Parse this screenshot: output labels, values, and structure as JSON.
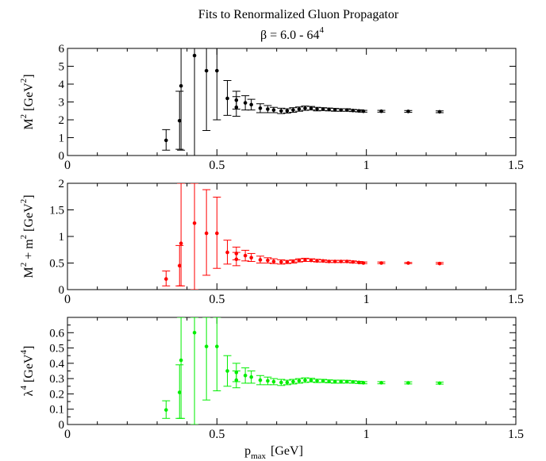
{
  "figure": {
    "title": "Fits to Renormalized Gluon Propagator",
    "subtitle_pre": "β = 6.0   -   64",
    "subtitle_sup": "4",
    "xlabel_main": "p",
    "xlabel_sub": "max",
    "xlabel_unit": "[GeV]"
  },
  "chart_data": [
    {
      "type": "scatter",
      "color": "#000000",
      "ylabel_parts": [
        "M",
        "2",
        " [GeV",
        "2",
        "]"
      ],
      "xlim": [
        0,
        1.5
      ],
      "ylim": [
        0,
        6
      ],
      "xticks": [
        0,
        0.5,
        1,
        1.5
      ],
      "xtick_labels": [
        "0",
        "0.5",
        "1",
        "1.5"
      ],
      "yticks": [
        0,
        1,
        2,
        3,
        4,
        5,
        6
      ],
      "ytick_labels": [
        "0",
        "1",
        "2",
        "3",
        "4",
        "5",
        "6"
      ],
      "points": [
        {
          "x": 0.33,
          "y": 0.85,
          "lo": 0.3,
          "hi": 1.45
        },
        {
          "x": 0.375,
          "y": 1.95,
          "lo": 0.35,
          "hi": 3.6
        },
        {
          "x": 0.38,
          "y": 3.9,
          "lo": 0.3,
          "hi": 6.0
        },
        {
          "x": 0.425,
          "y": 5.6,
          "lo": 0.0,
          "hi": 6.0
        },
        {
          "x": 0.465,
          "y": 4.75,
          "lo": 1.4,
          "hi": 6.0
        },
        {
          "x": 0.5,
          "y": 4.75,
          "lo": 2.0,
          "hi": 6.0
        },
        {
          "x": 0.535,
          "y": 3.2,
          "lo": 2.25,
          "hi": 4.2
        },
        {
          "x": 0.565,
          "y": 2.7,
          "lo": 2.2,
          "hi": 3.3
        },
        {
          "x": 0.565,
          "y": 3.1,
          "lo": 2.6,
          "hi": 3.6
        },
        {
          "x": 0.595,
          "y": 2.95,
          "lo": 2.55,
          "hi": 3.35
        },
        {
          "x": 0.615,
          "y": 2.85,
          "lo": 2.55,
          "hi": 3.15
        },
        {
          "x": 0.645,
          "y": 2.65,
          "lo": 2.4,
          "hi": 2.9
        },
        {
          "x": 0.67,
          "y": 2.6,
          "lo": 2.4,
          "hi": 2.8
        },
        {
          "x": 0.69,
          "y": 2.55,
          "lo": 2.4,
          "hi": 2.7
        },
        {
          "x": 0.715,
          "y": 2.5,
          "lo": 2.35,
          "hi": 2.65
        },
        {
          "x": 0.735,
          "y": 2.5,
          "lo": 2.38,
          "hi": 2.62
        },
        {
          "x": 0.755,
          "y": 2.55,
          "lo": 2.42,
          "hi": 2.68
        },
        {
          "x": 0.775,
          "y": 2.6,
          "lo": 2.48,
          "hi": 2.72
        },
        {
          "x": 0.795,
          "y": 2.65,
          "lo": 2.53,
          "hi": 2.77
        },
        {
          "x": 0.815,
          "y": 2.65,
          "lo": 2.55,
          "hi": 2.75
        },
        {
          "x": 0.835,
          "y": 2.6,
          "lo": 2.5,
          "hi": 2.7
        },
        {
          "x": 0.855,
          "y": 2.6,
          "lo": 2.52,
          "hi": 2.68
        },
        {
          "x": 0.875,
          "y": 2.58,
          "lo": 2.5,
          "hi": 2.66
        },
        {
          "x": 0.895,
          "y": 2.56,
          "lo": 2.48,
          "hi": 2.64
        },
        {
          "x": 0.915,
          "y": 2.55,
          "lo": 2.48,
          "hi": 2.62
        },
        {
          "x": 0.935,
          "y": 2.55,
          "lo": 2.48,
          "hi": 2.62
        },
        {
          "x": 0.955,
          "y": 2.52,
          "lo": 2.46,
          "hi": 2.58
        },
        {
          "x": 0.975,
          "y": 2.5,
          "lo": 2.44,
          "hi": 2.56
        },
        {
          "x": 0.99,
          "y": 2.48,
          "lo": 2.43,
          "hi": 2.53
        },
        {
          "x": 1.05,
          "y": 2.48,
          "lo": 2.43,
          "hi": 2.53
        },
        {
          "x": 1.14,
          "y": 2.47,
          "lo": 2.42,
          "hi": 2.52
        },
        {
          "x": 1.245,
          "y": 2.45,
          "lo": 2.4,
          "hi": 2.5
        }
      ]
    },
    {
      "type": "scatter",
      "color": "#ff0000",
      "ylabel_parts": [
        "M",
        "2",
        " + m",
        "2",
        "  [GeV",
        "2",
        "]"
      ],
      "xlim": [
        0,
        1.5
      ],
      "ylim": [
        0,
        2
      ],
      "xticks": [
        0,
        0.5,
        1,
        1.5
      ],
      "xtick_labels": [
        "0",
        "0.5",
        "1",
        "1.5"
      ],
      "yticks": [
        0,
        0.5,
        1,
        1.5,
        2
      ],
      "ytick_labels": [
        "0",
        "0.5",
        "1",
        "1.5",
        "2"
      ],
      "points": [
        {
          "x": 0.33,
          "y": 0.2,
          "lo": 0.07,
          "hi": 0.35
        },
        {
          "x": 0.375,
          "y": 0.45,
          "lo": 0.07,
          "hi": 0.83
        },
        {
          "x": 0.38,
          "y": 0.87,
          "lo": 0.07,
          "hi": 2.0
        },
        {
          "x": 0.425,
          "y": 1.25,
          "lo": 0.0,
          "hi": 2.0
        },
        {
          "x": 0.465,
          "y": 1.06,
          "lo": 0.27,
          "hi": 1.88
        },
        {
          "x": 0.5,
          "y": 1.06,
          "lo": 0.4,
          "hi": 1.74
        },
        {
          "x": 0.535,
          "y": 0.7,
          "lo": 0.48,
          "hi": 0.93
        },
        {
          "x": 0.565,
          "y": 0.57,
          "lo": 0.45,
          "hi": 0.7
        },
        {
          "x": 0.565,
          "y": 0.68,
          "lo": 0.56,
          "hi": 0.8
        },
        {
          "x": 0.595,
          "y": 0.64,
          "lo": 0.54,
          "hi": 0.74
        },
        {
          "x": 0.615,
          "y": 0.6,
          "lo": 0.53,
          "hi": 0.68
        },
        {
          "x": 0.645,
          "y": 0.56,
          "lo": 0.5,
          "hi": 0.63
        },
        {
          "x": 0.67,
          "y": 0.55,
          "lo": 0.5,
          "hi": 0.6
        },
        {
          "x": 0.69,
          "y": 0.53,
          "lo": 0.49,
          "hi": 0.58
        },
        {
          "x": 0.715,
          "y": 0.52,
          "lo": 0.48,
          "hi": 0.56
        },
        {
          "x": 0.735,
          "y": 0.52,
          "lo": 0.49,
          "hi": 0.55
        },
        {
          "x": 0.755,
          "y": 0.53,
          "lo": 0.5,
          "hi": 0.56
        },
        {
          "x": 0.775,
          "y": 0.55,
          "lo": 0.52,
          "hi": 0.58
        },
        {
          "x": 0.795,
          "y": 0.56,
          "lo": 0.53,
          "hi": 0.59
        },
        {
          "x": 0.815,
          "y": 0.55,
          "lo": 0.53,
          "hi": 0.58
        },
        {
          "x": 0.835,
          "y": 0.54,
          "lo": 0.52,
          "hi": 0.57
        },
        {
          "x": 0.855,
          "y": 0.54,
          "lo": 0.52,
          "hi": 0.56
        },
        {
          "x": 0.875,
          "y": 0.53,
          "lo": 0.51,
          "hi": 0.55
        },
        {
          "x": 0.895,
          "y": 0.53,
          "lo": 0.51,
          "hi": 0.55
        },
        {
          "x": 0.915,
          "y": 0.53,
          "lo": 0.51,
          "hi": 0.55
        },
        {
          "x": 0.935,
          "y": 0.53,
          "lo": 0.51,
          "hi": 0.55
        },
        {
          "x": 0.955,
          "y": 0.52,
          "lo": 0.5,
          "hi": 0.54
        },
        {
          "x": 0.975,
          "y": 0.51,
          "lo": 0.5,
          "hi": 0.53
        },
        {
          "x": 0.99,
          "y": 0.5,
          "lo": 0.49,
          "hi": 0.52
        },
        {
          "x": 1.05,
          "y": 0.5,
          "lo": 0.49,
          "hi": 0.52
        },
        {
          "x": 1.14,
          "y": 0.5,
          "lo": 0.49,
          "hi": 0.51
        },
        {
          "x": 1.245,
          "y": 0.49,
          "lo": 0.48,
          "hi": 0.51
        }
      ]
    },
    {
      "type": "scatter",
      "color": "#00ee00",
      "ylabel_parts": [
        "λ",
        "4",
        "  [GeV",
        "4",
        "]"
      ],
      "xlim": [
        0,
        1.5
      ],
      "ylim": [
        0,
        0.7
      ],
      "xticks": [
        0,
        0.5,
        1,
        1.5
      ],
      "xtick_labels": [
        "0",
        "0.5",
        "1",
        "1.5"
      ],
      "yticks": [
        0,
        0.05,
        0.1,
        0.15,
        0.2,
        0.25,
        0.3,
        0.35,
        0.4,
        0.45,
        0.5,
        0.55,
        0.6,
        0.65,
        0.7
      ],
      "ytick_labels": [
        "0",
        "",
        "0.1",
        "",
        "0.2",
        "",
        "0.3",
        "",
        "0.4",
        "",
        "0.5",
        "",
        "0.6",
        "",
        ""
      ],
      "points": [
        {
          "x": 0.33,
          "y": 0.095,
          "lo": 0.04,
          "hi": 0.155
        },
        {
          "x": 0.375,
          "y": 0.21,
          "lo": 0.04,
          "hi": 0.39
        },
        {
          "x": 0.38,
          "y": 0.42,
          "lo": 0.04,
          "hi": 0.7
        },
        {
          "x": 0.425,
          "y": 0.6,
          "lo": 0.0,
          "hi": 0.7
        },
        {
          "x": 0.465,
          "y": 0.51,
          "lo": 0.16,
          "hi": 0.7
        },
        {
          "x": 0.5,
          "y": 0.51,
          "lo": 0.22,
          "hi": 0.7
        },
        {
          "x": 0.535,
          "y": 0.35,
          "lo": 0.25,
          "hi": 0.45
        },
        {
          "x": 0.565,
          "y": 0.29,
          "lo": 0.24,
          "hi": 0.35
        },
        {
          "x": 0.565,
          "y": 0.34,
          "lo": 0.28,
          "hi": 0.4
        },
        {
          "x": 0.595,
          "y": 0.32,
          "lo": 0.27,
          "hi": 0.37
        },
        {
          "x": 0.615,
          "y": 0.31,
          "lo": 0.27,
          "hi": 0.35
        },
        {
          "x": 0.645,
          "y": 0.29,
          "lo": 0.26,
          "hi": 0.32
        },
        {
          "x": 0.67,
          "y": 0.285,
          "lo": 0.26,
          "hi": 0.31
        },
        {
          "x": 0.69,
          "y": 0.28,
          "lo": 0.26,
          "hi": 0.3
        },
        {
          "x": 0.715,
          "y": 0.275,
          "lo": 0.255,
          "hi": 0.295
        },
        {
          "x": 0.735,
          "y": 0.275,
          "lo": 0.26,
          "hi": 0.29
        },
        {
          "x": 0.755,
          "y": 0.28,
          "lo": 0.265,
          "hi": 0.295
        },
        {
          "x": 0.775,
          "y": 0.285,
          "lo": 0.27,
          "hi": 0.3
        },
        {
          "x": 0.795,
          "y": 0.29,
          "lo": 0.275,
          "hi": 0.305
        },
        {
          "x": 0.815,
          "y": 0.29,
          "lo": 0.278,
          "hi": 0.302
        },
        {
          "x": 0.835,
          "y": 0.285,
          "lo": 0.274,
          "hi": 0.296
        },
        {
          "x": 0.855,
          "y": 0.285,
          "lo": 0.275,
          "hi": 0.295
        },
        {
          "x": 0.875,
          "y": 0.282,
          "lo": 0.272,
          "hi": 0.292
        },
        {
          "x": 0.895,
          "y": 0.28,
          "lo": 0.27,
          "hi": 0.29
        },
        {
          "x": 0.915,
          "y": 0.28,
          "lo": 0.27,
          "hi": 0.29
        },
        {
          "x": 0.935,
          "y": 0.28,
          "lo": 0.271,
          "hi": 0.289
        },
        {
          "x": 0.955,
          "y": 0.278,
          "lo": 0.27,
          "hi": 0.286
        },
        {
          "x": 0.975,
          "y": 0.275,
          "lo": 0.268,
          "hi": 0.283
        },
        {
          "x": 0.99,
          "y": 0.273,
          "lo": 0.266,
          "hi": 0.28
        },
        {
          "x": 1.05,
          "y": 0.273,
          "lo": 0.266,
          "hi": 0.28
        },
        {
          "x": 1.14,
          "y": 0.272,
          "lo": 0.265,
          "hi": 0.279
        },
        {
          "x": 1.245,
          "y": 0.27,
          "lo": 0.264,
          "hi": 0.277
        }
      ]
    }
  ]
}
